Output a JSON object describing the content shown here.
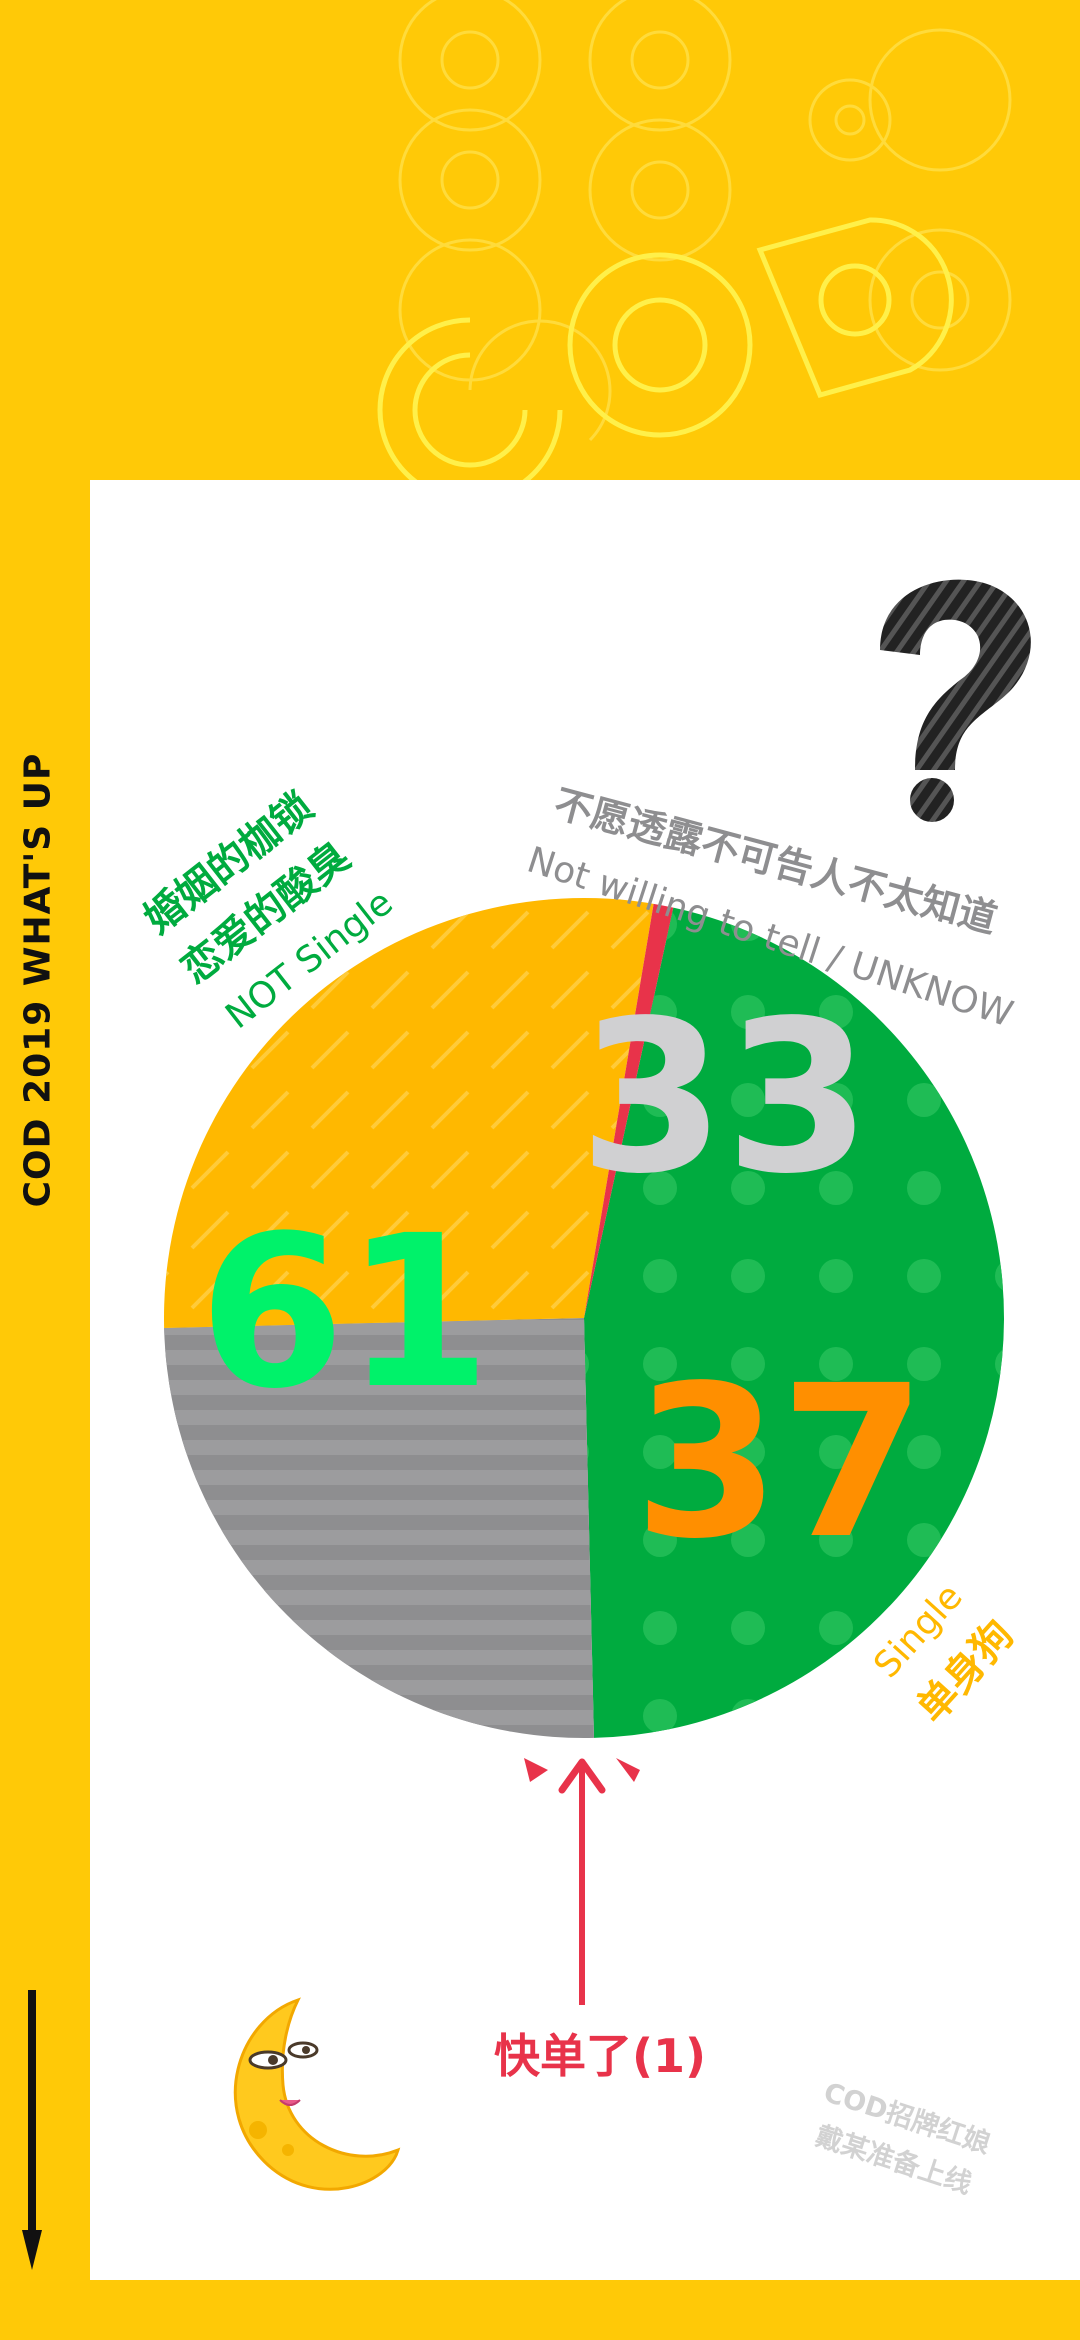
{
  "side_title": "COD 2019 WHAT'S UP",
  "background_logo": "COD",
  "chart_data": {
    "type": "pie",
    "title": "",
    "slices": [
      {
        "value": 61,
        "value_label": "61",
        "label_zh": [
          "婚姻的枷锁",
          "恋爱的酸臭"
        ],
        "label_en": "NOT Single",
        "color": "#00ab3f",
        "value_color": "#00f26a",
        "pattern": "dots"
      },
      {
        "value": 33,
        "value_label": "33",
        "label_zh": [
          "不愿透露不可告人不太知道"
        ],
        "label_en": "Not willing to tell / UNKNOW",
        "color": "#8e8e90",
        "value_color": "#d0d0d2",
        "pattern": "stripes"
      },
      {
        "value": 37,
        "value_label": "37",
        "label_zh": [
          "单身狗"
        ],
        "label_en": "Single",
        "color": "#ffb800",
        "value_color": "#ff8f00",
        "pattern": "hatch"
      },
      {
        "value": 1,
        "value_label": "",
        "label_zh": [
          "快单了(1)"
        ],
        "label_en": "",
        "color": "#e8334a",
        "pattern": "none"
      }
    ],
    "legend": "none",
    "annotation": "快单了(1)"
  },
  "watermark": [
    "COD招牌红娘",
    "戴某准备上线"
  ],
  "icons": [
    "question-mark-icon",
    "moon-icon",
    "arrow-up-icon",
    "down-arrow-icon"
  ],
  "colors": {
    "background": "#ffc907",
    "card": "#ffffff",
    "accent_red": "#e8334a"
  }
}
